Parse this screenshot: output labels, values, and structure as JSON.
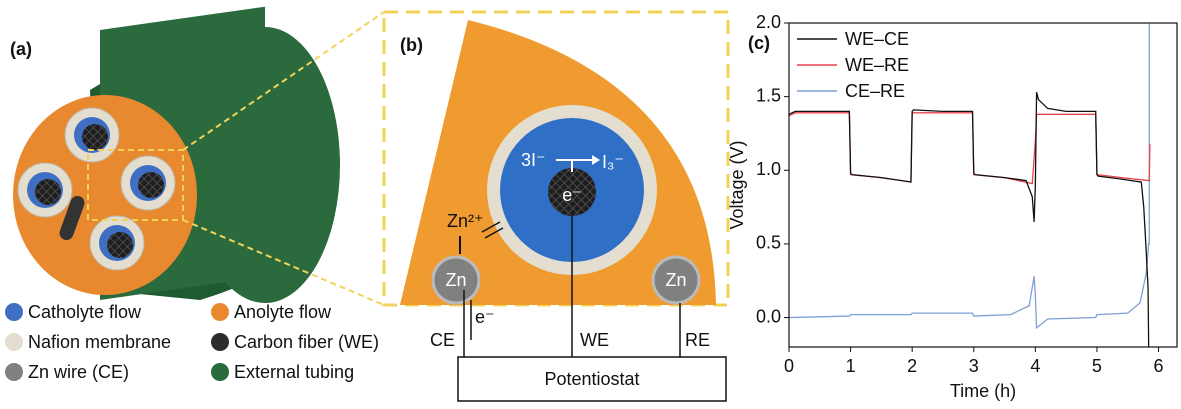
{
  "panel_a": {
    "label": "(a)",
    "legend": [
      {
        "label": "Catholyte flow",
        "color": "#3f6fc2"
      },
      {
        "label": "Anolyte flow",
        "color": "#e9892f"
      },
      {
        "label": "Nafion membrane",
        "color": "#e4ded0"
      },
      {
        "label": "Carbon fiber (WE)",
        "color": "#2c2c2c"
      },
      {
        "label": "Zn wire (CE)",
        "color": "#808080"
      },
      {
        "label": "External tubing",
        "color": "#2a6a3c"
      }
    ]
  },
  "panel_b": {
    "label": "(b)",
    "reactant": "3I⁻",
    "product": "I₃⁻",
    "electron_center": "e⁻",
    "ion": "Zn²⁺",
    "zn_left": "Zn",
    "zn_right": "Zn",
    "electron_flow": "e⁻",
    "ce": "CE",
    "we": "WE",
    "re": "RE",
    "potentiostat": "Potentiostat"
  },
  "chart_data": {
    "type": "line",
    "label": "(c)",
    "x_label": "Time (h)",
    "y_label": "Voltage (V)",
    "xlim": [
      0,
      6.3
    ],
    "ylim": [
      -0.2,
      2.0
    ],
    "xticks": [
      0,
      1,
      2,
      3,
      4,
      5,
      6
    ],
    "yticks": [
      {
        "value": 0,
        "label": "0.0"
      },
      {
        "value": 0.5,
        "label": "0.5"
      },
      {
        "value": 1,
        "label": "1.0"
      },
      {
        "value": 1.5,
        "label": "1.5"
      },
      {
        "value": 2,
        "label": "2.0"
      }
    ],
    "legend": "upper left",
    "series": [
      {
        "name": "WE–CE",
        "color": "#111111",
        "x": [
          0,
          0.1,
          0.5,
          0.98,
          1.0,
          1.02,
          1.5,
          1.98,
          2.0,
          2.02,
          2.5,
          2.98,
          3.0,
          3.02,
          3.5,
          3.85,
          3.95,
          3.98,
          4.0,
          4.02,
          4.05,
          4.2,
          4.5,
          4.98,
          5.0,
          5.02,
          5.4,
          5.72,
          5.76,
          5.8,
          5.83,
          5.84
        ],
        "values": [
          1.38,
          1.4,
          1.4,
          1.4,
          0.98,
          0.97,
          0.95,
          0.92,
          1.4,
          1.41,
          1.4,
          1.4,
          0.98,
          0.97,
          0.95,
          0.93,
          0.82,
          0.65,
          0.9,
          1.53,
          1.48,
          1.42,
          1.4,
          1.4,
          0.97,
          0.96,
          0.94,
          0.92,
          0.75,
          0.45,
          0.2,
          -0.2
        ]
      },
      {
        "name": "WE–RE",
        "color": "#e8444c",
        "x": [
          0,
          0.1,
          0.98,
          1.0,
          1.5,
          1.98,
          2.0,
          2.5,
          2.98,
          3.0,
          3.5,
          3.95,
          4.0,
          4.02,
          4.2,
          4.98,
          5.0,
          5.4,
          5.84,
          5.85,
          5.86
        ],
        "values": [
          1.37,
          1.39,
          1.39,
          0.97,
          0.95,
          0.92,
          1.39,
          1.39,
          1.39,
          0.97,
          0.95,
          0.91,
          1.2,
          1.38,
          1.38,
          1.38,
          0.97,
          0.95,
          0.93,
          0.93,
          1.18
        ]
      },
      {
        "name": "CE–RE",
        "color": "#7f9fd8",
        "x": [
          0,
          0.98,
          1.0,
          1.98,
          2.0,
          2.98,
          3.0,
          3.6,
          3.9,
          3.98,
          4.0,
          4.02,
          4.2,
          4.98,
          5.0,
          5.5,
          5.7,
          5.8,
          5.84,
          5.85,
          5.85
        ],
        "values": [
          0.0,
          0.01,
          0.02,
          0.02,
          0.03,
          0.03,
          0.01,
          0.02,
          0.08,
          0.28,
          0.15,
          -0.07,
          -0.01,
          0.0,
          0.02,
          0.03,
          0.1,
          0.3,
          0.5,
          0.5,
          2.0
        ]
      }
    ]
  }
}
